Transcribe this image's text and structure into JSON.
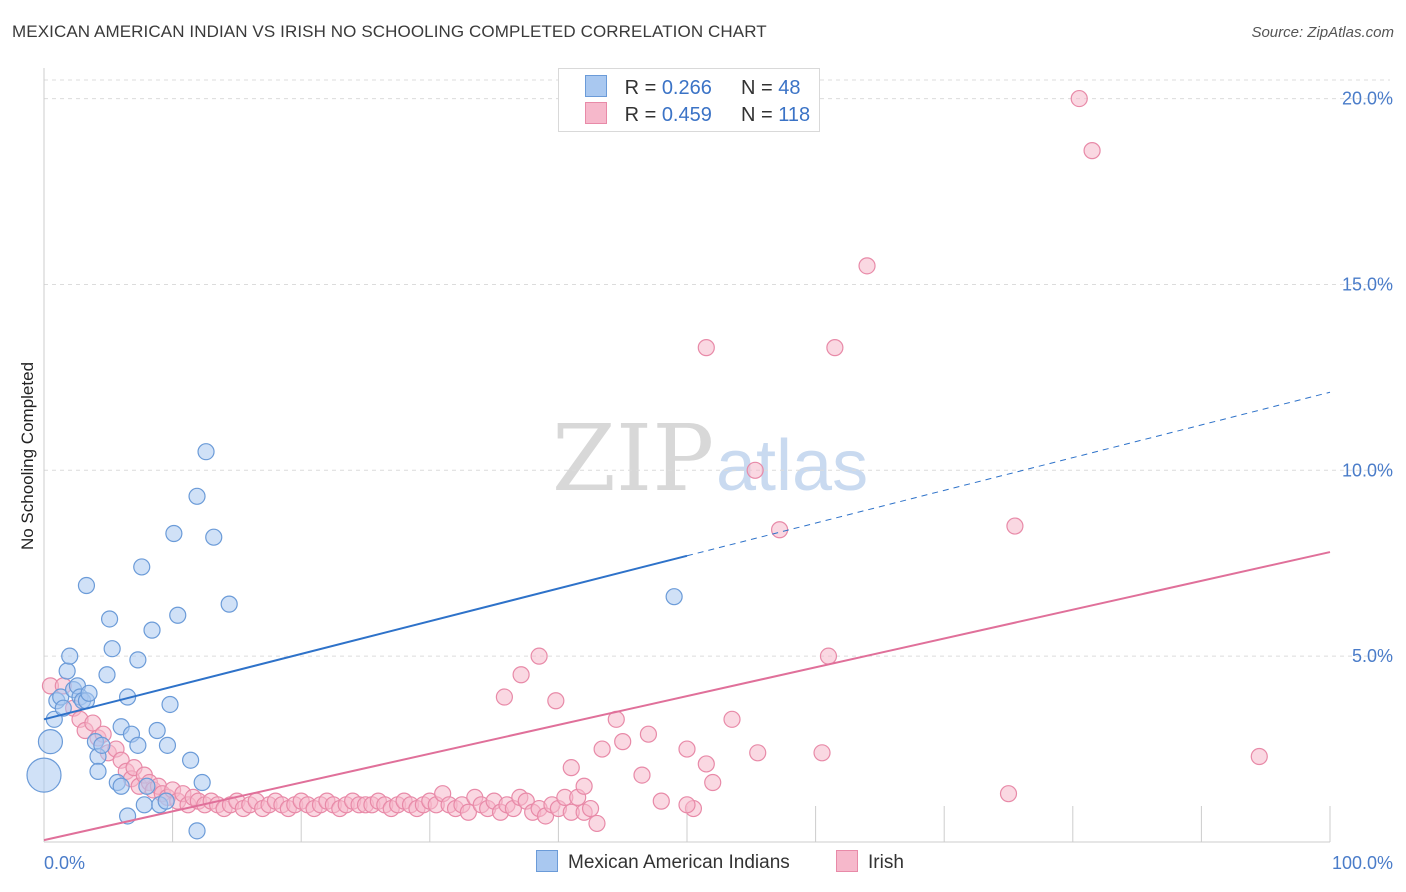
{
  "title": "MEXICAN AMERICAN INDIAN VS IRISH NO SCHOOLING COMPLETED CORRELATION CHART",
  "source": "Source: ZipAtlas.com",
  "watermark": {
    "zip": "ZIP",
    "atlas": "atlas"
  },
  "legend": {
    "rows": [
      {
        "r_label": "R = ",
        "r_value": "0.266",
        "n_label": "N = ",
        "n_value": "48"
      },
      {
        "r_label": "R = ",
        "r_value": "0.459",
        "n_label": "N = ",
        "n_value": "118"
      }
    ]
  },
  "bottom_legend": {
    "series1": "Mexican American Indians",
    "series2": "Irish"
  },
  "colors": {
    "blue_fill": "#a9c8f0",
    "blue_stroke": "#6b9bd8",
    "blue_line": "#2e72c9",
    "pink_fill": "#f6b8cb",
    "pink_stroke": "#e88aa8",
    "pink_line": "#e0709a",
    "grid": "#dcdcdc",
    "axis_text": "#4a7cc9"
  },
  "chart_data": {
    "type": "scatter",
    "title": "MEXICAN AMERICAN INDIAN VS IRISH NO SCHOOLING COMPLETED CORRELATION CHART",
    "xlabel": "",
    "ylabel": "No Schooling Completed",
    "xlim": [
      0,
      100
    ],
    "ylim": [
      0,
      20.5
    ],
    "x_tick_labels": [
      "0.0%",
      "100.0%"
    ],
    "y_ticks": [
      5,
      10,
      15,
      20
    ],
    "y_tick_labels": [
      "5.0%",
      "10.0%",
      "15.0%",
      "20.0%"
    ],
    "series": [
      {
        "name": "Mexican American Indians",
        "R": 0.266,
        "N": 48,
        "trend": {
          "x0": 0,
          "y0": 3.3,
          "x1": 50,
          "y1": 7.7,
          "dashed_to_x": 100,
          "dashed_to_y": 12.1
        },
        "points": [
          {
            "x": 0.0,
            "y": 1.8,
            "s": 3
          },
          {
            "x": 0.5,
            "y": 2.7,
            "s": 2
          },
          {
            "x": 0.8,
            "y": 3.3,
            "s": 1
          },
          {
            "x": 1.0,
            "y": 3.8,
            "s": 1
          },
          {
            "x": 1.3,
            "y": 3.9,
            "s": 1
          },
          {
            "x": 1.5,
            "y": 3.6,
            "s": 1
          },
          {
            "x": 1.8,
            "y": 4.6,
            "s": 1
          },
          {
            "x": 2.0,
            "y": 5.0,
            "s": 1
          },
          {
            "x": 2.3,
            "y": 4.1,
            "s": 1
          },
          {
            "x": 2.6,
            "y": 4.2,
            "s": 1
          },
          {
            "x": 2.8,
            "y": 3.9,
            "s": 1
          },
          {
            "x": 3.0,
            "y": 3.8,
            "s": 1
          },
          {
            "x": 3.3,
            "y": 3.8,
            "s": 1
          },
          {
            "x": 3.5,
            "y": 4.0,
            "s": 1
          },
          {
            "x": 3.3,
            "y": 6.9,
            "s": 1
          },
          {
            "x": 4.0,
            "y": 2.7,
            "s": 1
          },
          {
            "x": 4.2,
            "y": 2.3,
            "s": 1
          },
          {
            "x": 4.2,
            "y": 1.9,
            "s": 1
          },
          {
            "x": 4.5,
            "y": 2.6,
            "s": 1
          },
          {
            "x": 4.9,
            "y": 4.5,
            "s": 1
          },
          {
            "x": 5.1,
            "y": 6.0,
            "s": 1
          },
          {
            "x": 5.3,
            "y": 5.2,
            "s": 1
          },
          {
            "x": 5.7,
            "y": 1.6,
            "s": 1
          },
          {
            "x": 6.0,
            "y": 1.5,
            "s": 1
          },
          {
            "x": 6.0,
            "y": 3.1,
            "s": 1
          },
          {
            "x": 6.5,
            "y": 3.9,
            "s": 1
          },
          {
            "x": 6.5,
            "y": 0.7,
            "s": 1
          },
          {
            "x": 6.8,
            "y": 2.9,
            "s": 1
          },
          {
            "x": 7.3,
            "y": 2.6,
            "s": 1
          },
          {
            "x": 7.3,
            "y": 4.9,
            "s": 1
          },
          {
            "x": 7.6,
            "y": 7.4,
            "s": 1
          },
          {
            "x": 7.8,
            "y": 1.0,
            "s": 1
          },
          {
            "x": 8.0,
            "y": 1.5,
            "s": 1
          },
          {
            "x": 8.4,
            "y": 5.7,
            "s": 1
          },
          {
            "x": 8.8,
            "y": 3.0,
            "s": 1
          },
          {
            "x": 9.0,
            "y": 1.0,
            "s": 1
          },
          {
            "x": 9.5,
            "y": 1.1,
            "s": 1
          },
          {
            "x": 9.6,
            "y": 2.6,
            "s": 1
          },
          {
            "x": 9.8,
            "y": 3.7,
            "s": 1
          },
          {
            "x": 10.1,
            "y": 8.3,
            "s": 1
          },
          {
            "x": 10.4,
            "y": 6.1,
            "s": 1
          },
          {
            "x": 11.4,
            "y": 2.2,
            "s": 1
          },
          {
            "x": 11.9,
            "y": 0.3,
            "s": 1
          },
          {
            "x": 11.9,
            "y": 9.3,
            "s": 1
          },
          {
            "x": 12.3,
            "y": 1.6,
            "s": 1
          },
          {
            "x": 12.6,
            "y": 10.5,
            "s": 1
          },
          {
            "x": 13.2,
            "y": 8.2,
            "s": 1
          },
          {
            "x": 14.4,
            "y": 6.4,
            "s": 1
          },
          {
            "x": 49.0,
            "y": 6.6,
            "s": 1
          }
        ]
      },
      {
        "name": "Irish",
        "R": 0.459,
        "N": 118,
        "trend": {
          "x0": 0,
          "y0": 0.05,
          "x1": 100,
          "y1": 7.8
        },
        "points": [
          {
            "x": 0.5,
            "y": 4.2,
            "s": 1
          },
          {
            "x": 1.5,
            "y": 4.2,
            "s": 1
          },
          {
            "x": 2.3,
            "y": 3.6,
            "s": 1
          },
          {
            "x": 2.8,
            "y": 3.3,
            "s": 1
          },
          {
            "x": 3.2,
            "y": 3.0,
            "s": 1
          },
          {
            "x": 3.8,
            "y": 3.2,
            "s": 1
          },
          {
            "x": 4.2,
            "y": 2.8,
            "s": 1
          },
          {
            "x": 4.6,
            "y": 2.9,
            "s": 1
          },
          {
            "x": 5.0,
            "y": 2.4,
            "s": 1
          },
          {
            "x": 5.6,
            "y": 2.5,
            "s": 1
          },
          {
            "x": 6.0,
            "y": 2.2,
            "s": 1
          },
          {
            "x": 6.4,
            "y": 1.9,
            "s": 1
          },
          {
            "x": 6.8,
            "y": 1.7,
            "s": 1
          },
          {
            "x": 7.0,
            "y": 2.0,
            "s": 1
          },
          {
            "x": 7.4,
            "y": 1.5,
            "s": 1
          },
          {
            "x": 7.8,
            "y": 1.8,
            "s": 1
          },
          {
            "x": 8.2,
            "y": 1.6,
            "s": 1
          },
          {
            "x": 8.5,
            "y": 1.4,
            "s": 1
          },
          {
            "x": 8.9,
            "y": 1.5,
            "s": 1
          },
          {
            "x": 9.2,
            "y": 1.3,
            "s": 1
          },
          {
            "x": 9.6,
            "y": 1.2,
            "s": 1
          },
          {
            "x": 10.0,
            "y": 1.4,
            "s": 1
          },
          {
            "x": 10.4,
            "y": 1.1,
            "s": 1
          },
          {
            "x": 10.8,
            "y": 1.3,
            "s": 1
          },
          {
            "x": 11.2,
            "y": 1.0,
            "s": 1
          },
          {
            "x": 11.6,
            "y": 1.2,
            "s": 1
          },
          {
            "x": 12.0,
            "y": 1.1,
            "s": 1
          },
          {
            "x": 12.5,
            "y": 1.0,
            "s": 1
          },
          {
            "x": 13.0,
            "y": 1.1,
            "s": 1
          },
          {
            "x": 13.5,
            "y": 1.0,
            "s": 1
          },
          {
            "x": 14.0,
            "y": 0.9,
            "s": 1
          },
          {
            "x": 14.5,
            "y": 1.0,
            "s": 1
          },
          {
            "x": 15.0,
            "y": 1.1,
            "s": 1
          },
          {
            "x": 15.5,
            "y": 0.9,
            "s": 1
          },
          {
            "x": 16.0,
            "y": 1.0,
            "s": 1
          },
          {
            "x": 16.5,
            "y": 1.1,
            "s": 1
          },
          {
            "x": 17.0,
            "y": 0.9,
            "s": 1
          },
          {
            "x": 17.5,
            "y": 1.0,
            "s": 1
          },
          {
            "x": 18.0,
            "y": 1.1,
            "s": 1
          },
          {
            "x": 18.5,
            "y": 1.0,
            "s": 1
          },
          {
            "x": 19.0,
            "y": 0.9,
            "s": 1
          },
          {
            "x": 19.5,
            "y": 1.0,
            "s": 1
          },
          {
            "x": 20.0,
            "y": 1.1,
            "s": 1
          },
          {
            "x": 20.5,
            "y": 1.0,
            "s": 1
          },
          {
            "x": 21.0,
            "y": 0.9,
            "s": 1
          },
          {
            "x": 21.5,
            "y": 1.0,
            "s": 1
          },
          {
            "x": 22.0,
            "y": 1.1,
            "s": 1
          },
          {
            "x": 22.5,
            "y": 1.0,
            "s": 1
          },
          {
            "x": 23.0,
            "y": 0.9,
            "s": 1
          },
          {
            "x": 23.5,
            "y": 1.0,
            "s": 1
          },
          {
            "x": 24.0,
            "y": 1.1,
            "s": 1
          },
          {
            "x": 24.5,
            "y": 1.0,
            "s": 1
          },
          {
            "x": 25.0,
            "y": 1.0,
            "s": 1
          },
          {
            "x": 25.5,
            "y": 1.0,
            "s": 1
          },
          {
            "x": 26.0,
            "y": 1.1,
            "s": 1
          },
          {
            "x": 26.5,
            "y": 1.0,
            "s": 1
          },
          {
            "x": 27.0,
            "y": 0.9,
            "s": 1
          },
          {
            "x": 27.5,
            "y": 1.0,
            "s": 1
          },
          {
            "x": 28.0,
            "y": 1.1,
            "s": 1
          },
          {
            "x": 28.5,
            "y": 1.0,
            "s": 1
          },
          {
            "x": 29.0,
            "y": 0.9,
            "s": 1
          },
          {
            "x": 29.5,
            "y": 1.0,
            "s": 1
          },
          {
            "x": 30.0,
            "y": 1.1,
            "s": 1
          },
          {
            "x": 30.5,
            "y": 1.0,
            "s": 1
          },
          {
            "x": 31.0,
            "y": 1.3,
            "s": 1
          },
          {
            "x": 31.5,
            "y": 1.0,
            "s": 1
          },
          {
            "x": 32.0,
            "y": 0.9,
            "s": 1
          },
          {
            "x": 32.5,
            "y": 1.0,
            "s": 1
          },
          {
            "x": 33.0,
            "y": 0.8,
            "s": 1
          },
          {
            "x": 33.5,
            "y": 1.2,
            "s": 1
          },
          {
            "x": 34.0,
            "y": 1.0,
            "s": 1
          },
          {
            "x": 34.5,
            "y": 0.9,
            "s": 1
          },
          {
            "x": 35.0,
            "y": 1.1,
            "s": 1
          },
          {
            "x": 35.5,
            "y": 0.8,
            "s": 1
          },
          {
            "x": 36.0,
            "y": 1.0,
            "s": 1
          },
          {
            "x": 36.5,
            "y": 0.9,
            "s": 1
          },
          {
            "x": 37.0,
            "y": 1.2,
            "s": 1
          },
          {
            "x": 37.5,
            "y": 1.1,
            "s": 1
          },
          {
            "x": 38.0,
            "y": 0.8,
            "s": 1
          },
          {
            "x": 38.5,
            "y": 0.9,
            "s": 1
          },
          {
            "x": 39.0,
            "y": 0.7,
            "s": 1
          },
          {
            "x": 39.5,
            "y": 1.0,
            "s": 1
          },
          {
            "x": 40.0,
            "y": 0.9,
            "s": 1
          },
          {
            "x": 40.5,
            "y": 1.2,
            "s": 1
          },
          {
            "x": 41.0,
            "y": 0.8,
            "s": 1
          },
          {
            "x": 41.5,
            "y": 1.2,
            "s": 1
          },
          {
            "x": 42.0,
            "y": 0.8,
            "s": 1
          },
          {
            "x": 42.5,
            "y": 0.9,
            "s": 1
          },
          {
            "x": 43.0,
            "y": 0.5,
            "s": 1
          },
          {
            "x": 35.8,
            "y": 3.9,
            "s": 1
          },
          {
            "x": 37.1,
            "y": 4.5,
            "s": 1
          },
          {
            "x": 38.5,
            "y": 5.0,
            "s": 1
          },
          {
            "x": 39.8,
            "y": 3.8,
            "s": 1
          },
          {
            "x": 41.0,
            "y": 2.0,
            "s": 1
          },
          {
            "x": 42.0,
            "y": 1.5,
            "s": 1
          },
          {
            "x": 43.4,
            "y": 2.5,
            "s": 1
          },
          {
            "x": 44.5,
            "y": 3.3,
            "s": 1
          },
          {
            "x": 45.0,
            "y": 2.7,
            "s": 1
          },
          {
            "x": 46.5,
            "y": 1.8,
            "s": 1
          },
          {
            "x": 47.0,
            "y": 2.9,
            "s": 1
          },
          {
            "x": 50.0,
            "y": 2.5,
            "s": 1
          },
          {
            "x": 50.5,
            "y": 0.9,
            "s": 1
          },
          {
            "x": 51.5,
            "y": 2.1,
            "s": 1
          },
          {
            "x": 52.0,
            "y": 1.6,
            "s": 1
          },
          {
            "x": 53.5,
            "y": 3.3,
            "s": 1
          },
          {
            "x": 55.5,
            "y": 2.4,
            "s": 1
          },
          {
            "x": 55.3,
            "y": 10.0,
            "s": 1
          },
          {
            "x": 51.5,
            "y": 13.3,
            "s": 1
          },
          {
            "x": 57.2,
            "y": 8.4,
            "s": 1
          },
          {
            "x": 60.5,
            "y": 2.4,
            "s": 1
          },
          {
            "x": 61.5,
            "y": 13.3,
            "s": 1
          },
          {
            "x": 61.0,
            "y": 5.0,
            "s": 1
          },
          {
            "x": 64.0,
            "y": 15.5,
            "s": 1
          },
          {
            "x": 75.0,
            "y": 1.3,
            "s": 1
          },
          {
            "x": 75.5,
            "y": 8.5,
            "s": 1
          },
          {
            "x": 80.5,
            "y": 20.0,
            "s": 1
          },
          {
            "x": 81.5,
            "y": 18.6,
            "s": 1
          },
          {
            "x": 94.5,
            "y": 2.3,
            "s": 1
          },
          {
            "x": 48.0,
            "y": 1.1,
            "s": 1
          },
          {
            "x": 50.0,
            "y": 1.0,
            "s": 1
          }
        ]
      }
    ]
  }
}
